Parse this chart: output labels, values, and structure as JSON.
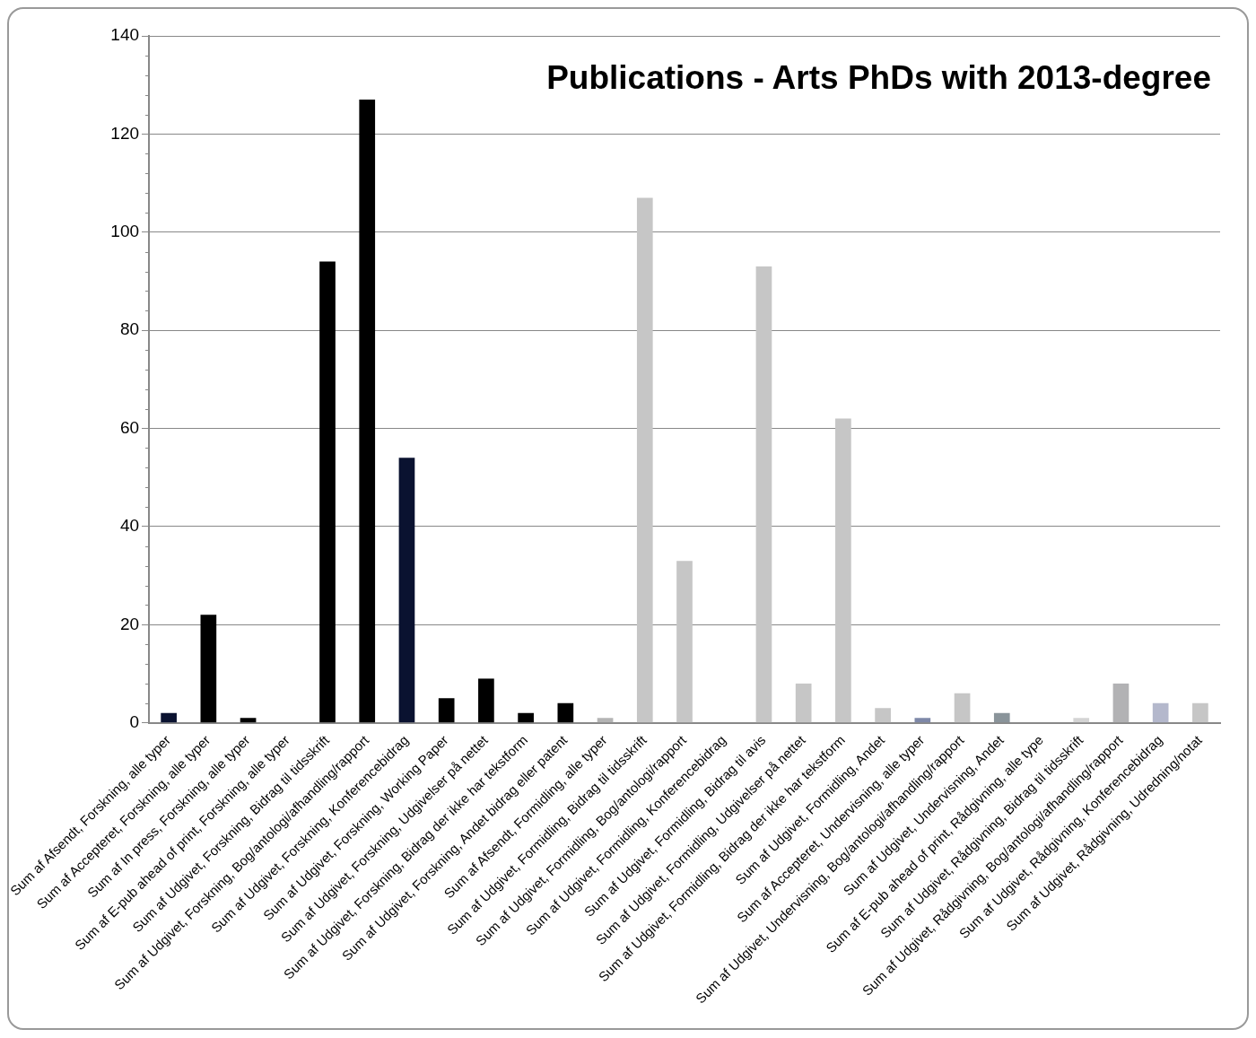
{
  "chart_data": {
    "type": "bar",
    "title": "Publications - Arts PhDs with 2013-degree",
    "categories": [
      "Sum af Afsendt, Forskning, alle typer",
      "Sum af Accepteret, Forskning, alle typer",
      "Sum af In press, Forskning, alle typer",
      "Sum af E-pub ahead of print, Forskning, alle typer",
      "Sum af Udgivet, Forskning, Bidrag til tidsskrift",
      "Sum af Udgivet, Forskning, Bog/antologi/afhandling/rapport",
      "Sum af Udgivet, Forskning, Konferencebidrag",
      "Sum af Udgivet, Forskning, Working Paper",
      "Sum af Udgivet, Forskning, Udgivelser på nettet",
      "Sum af Udgivet, Forskning, Bidrag der ikke har tekstform",
      "Sum af Udgivet, Forskning, Andet bidrag eller patent",
      "Sum af Afsendt, Formidling, alle typer",
      "Sum af Udgivet, Formidling, Bidrag til tidsskrift",
      "Sum af Udgivet, Formidling, Bog/antologi/rapport",
      "Sum af Udgivet, Formidling, Konferencebidrag",
      "Sum af Udgivet, Formidling, Bidrag til avis",
      "Sum af Udgivet, Formidling, Udgivelser på nettet",
      "Sum af Udgivet, Formidling, Bidrag der ikke har tekstform",
      "Sum af Udgivet, Formidling, Andet",
      "Sum af Accepteret, Undervisning, alle typer",
      "Sum af Udgivet, Undervisning, Bog/antologi/afhandling/rapport",
      "Sum af Udgivet, Undervisning, Andet",
      "Sum af E-pub ahead of print, Rådgivning, alle type",
      "Sum af Udgivet, Rådgivning, Bidrag til tidsskrift",
      "Sum af Udgivet, Rådgivning, Bog/antologi/afhandling/rapport",
      "Sum af Udgivet, Rådgivning, Konferencebidrag",
      "Sum af Udgivet, Rådgivning, Udredning/notat"
    ],
    "values": [
      2,
      22,
      1,
      0,
      94,
      127,
      54,
      5,
      9,
      2,
      4,
      1,
      107,
      33,
      0,
      93,
      8,
      62,
      3,
      1,
      6,
      2,
      0,
      1,
      8,
      4,
      4
    ],
    "colors": [
      "#0a1230",
      "#000000",
      "#000000",
      "#000000",
      "#000000",
      "#000000",
      "#0a1230",
      "#000000",
      "#000000",
      "#000000",
      "#000000",
      "#b4b4b4",
      "#c6c6c6",
      "#c6c6c6",
      "#c6c6c6",
      "#c6c6c6",
      "#c6c6c6",
      "#c6c6c6",
      "#c6c6c6",
      "#7e88a8",
      "#c6c6c6",
      "#8a949a",
      "#c6c6c6",
      "#d4d4d4",
      "#b2b2b4",
      "#b4b8cc",
      "#c6c6c6"
    ],
    "ylim": [
      0,
      140
    ],
    "yticks": [
      0,
      20,
      40,
      60,
      80,
      100,
      120,
      140
    ],
    "grid": "y",
    "legend": false
  }
}
